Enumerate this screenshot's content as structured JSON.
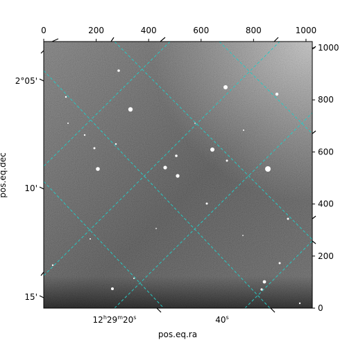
{
  "chart_data": {
    "type": "image",
    "title": "",
    "pixel_axes": {
      "x_ticks": [
        "0",
        "200",
        "400",
        "600",
        "800",
        "1000"
      ],
      "x_tick_values": [
        0,
        200,
        400,
        600,
        800,
        1000
      ],
      "y_ticks": [
        "0",
        "200",
        "400",
        "600",
        "800",
        "1000"
      ],
      "y_tick_values": [
        0,
        200,
        400,
        600,
        800,
        1000
      ],
      "xlim": [
        0,
        1024
      ],
      "ylim": [
        0,
        1024
      ]
    },
    "world_axes": {
      "xlabel": "pos.eq.ra",
      "ylabel": "pos.eq.dec",
      "ra_ticks": [
        {
          "h": "12",
          "m": "29",
          "s": "20",
          "sec": 20
        },
        {
          "s": "40",
          "sec": 40
        }
      ],
      "dec_ticks": [
        {
          "label": "2°05'",
          "arcmin": 5
        },
        {
          "label": "10'",
          "arcmin": 10
        },
        {
          "label": "15'",
          "arcmin": 15
        }
      ]
    },
    "grid": true,
    "grid_color": "#27c9c3",
    "image_style": "grayscale star field"
  }
}
